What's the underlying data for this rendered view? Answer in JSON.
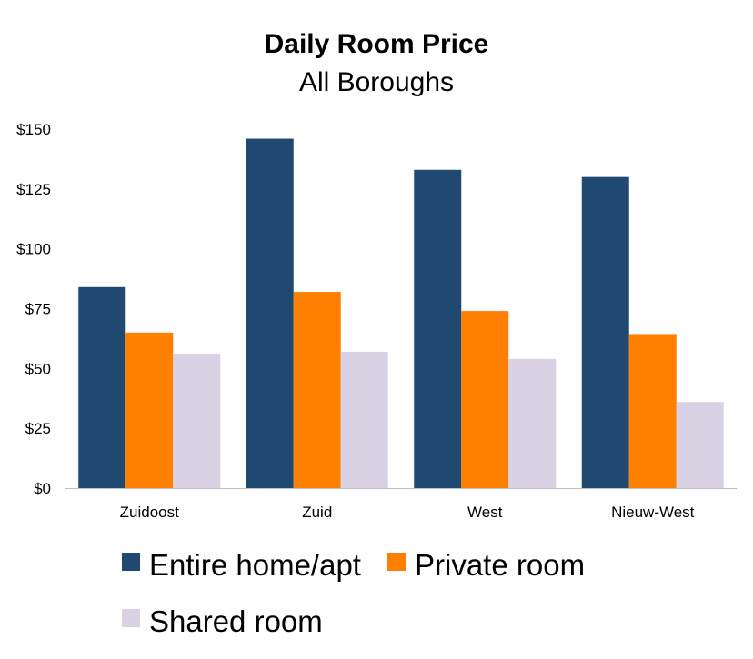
{
  "chart_data": {
    "type": "bar",
    "title": "Daily Room Price",
    "subtitle": "All Boroughs",
    "xlabel": "",
    "ylabel": "",
    "categories": [
      "Zuidoost",
      "Zuid",
      "West",
      "Nieuw-West"
    ],
    "series": [
      {
        "name": "Entire home/apt",
        "color": "#1f4971",
        "values": [
          84,
          146,
          133,
          130
        ]
      },
      {
        "name": "Private room",
        "color": "#ff7f00",
        "values": [
          65,
          82,
          74,
          64
        ]
      },
      {
        "name": "Shared room",
        "color": "#d9d2e4",
        "values": [
          56,
          57,
          54,
          36
        ]
      }
    ],
    "ylim": [
      0,
      150
    ],
    "yticks": [
      0,
      25,
      50,
      75,
      100,
      125,
      150
    ],
    "ytick_labels": [
      "$0",
      "$25",
      "$50",
      "$75",
      "$100",
      "$125",
      "$150"
    ],
    "grid": false,
    "legend_position": "bottom"
  }
}
